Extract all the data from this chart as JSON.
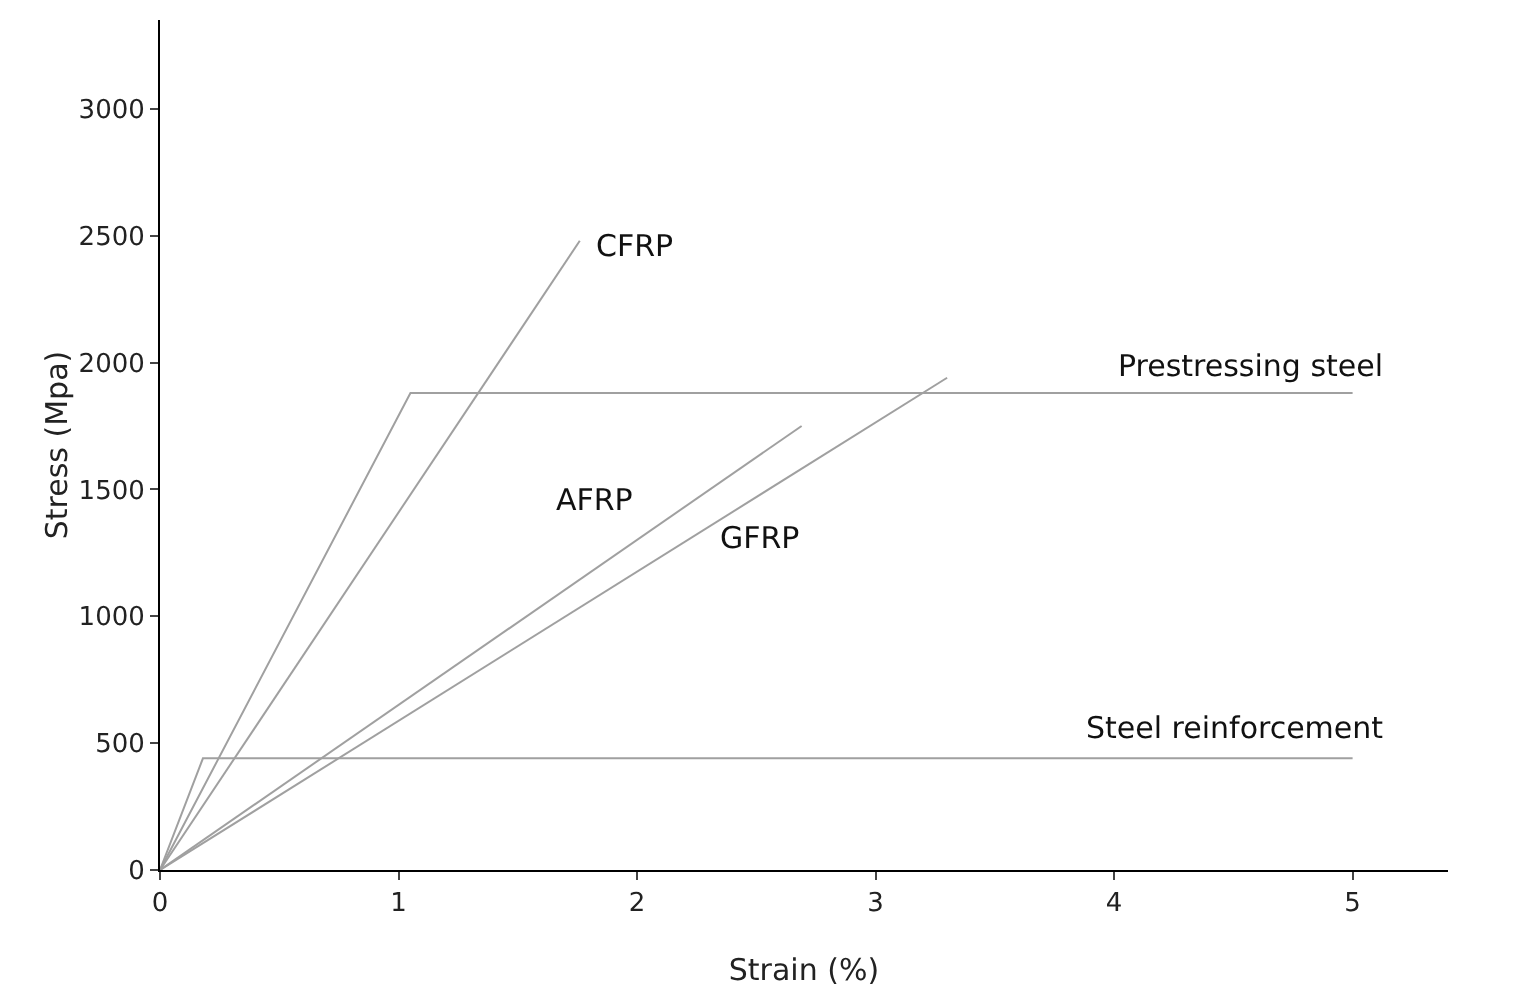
{
  "chart_data": {
    "type": "line",
    "xlabel": "Strain (%)",
    "ylabel": "Stress (Mpa)",
    "xlim": [
      0,
      5.4
    ],
    "ylim": [
      0,
      3350
    ],
    "xticks": [
      0,
      1,
      2,
      3,
      4,
      5
    ],
    "yticks": [
      0,
      500,
      1000,
      1500,
      2000,
      2500,
      3000
    ],
    "grid": false,
    "legend": false,
    "marker": "none",
    "line_style": "solid",
    "series": [
      {
        "name": "CFRP",
        "color": "#a0a0a0",
        "x": [
          0,
          1.76
        ],
        "values": [
          0,
          2480
        ]
      },
      {
        "name": "Prestressing steel",
        "color": "#a0a0a0",
        "x": [
          0,
          1.05,
          5
        ],
        "values": [
          0,
          1880,
          1880
        ]
      },
      {
        "name": "AFRP",
        "color": "#a0a0a0",
        "x": [
          0,
          2.69
        ],
        "values": [
          0,
          1750
        ]
      },
      {
        "name": "GFRP",
        "color": "#a0a0a0",
        "x": [
          0,
          3.3
        ],
        "values": [
          0,
          1940
        ]
      },
      {
        "name": "Steel reinforcement",
        "color": "#a0a0a0",
        "x": [
          0,
          0.18,
          5
        ],
        "values": [
          0,
          440,
          440
        ]
      }
    ]
  }
}
